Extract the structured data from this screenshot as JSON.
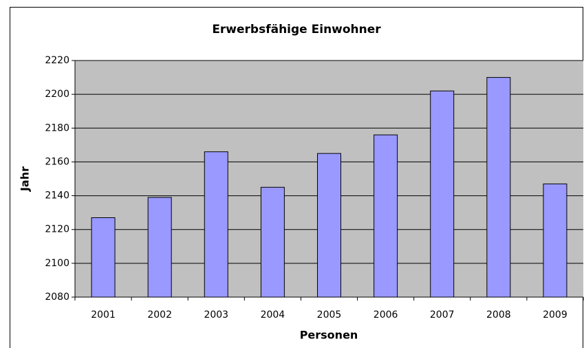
{
  "chart_data": {
    "type": "bar",
    "title": "Erwerbsfähige Einwohner",
    "x_label": "Personen",
    "y_label": "Jahr",
    "categories": [
      "2001",
      "2002",
      "2003",
      "2004",
      "2005",
      "2006",
      "2007",
      "2008",
      "2009"
    ],
    "values": [
      2127,
      2139,
      2166,
      2145,
      2165,
      2176,
      2202,
      2210,
      2147
    ],
    "color": "#9999ff",
    "ylim": [
      2080,
      2220
    ],
    "yticks": [
      2080,
      2100,
      2120,
      2140,
      2160,
      2180,
      2200,
      2220
    ],
    "grid": true
  }
}
